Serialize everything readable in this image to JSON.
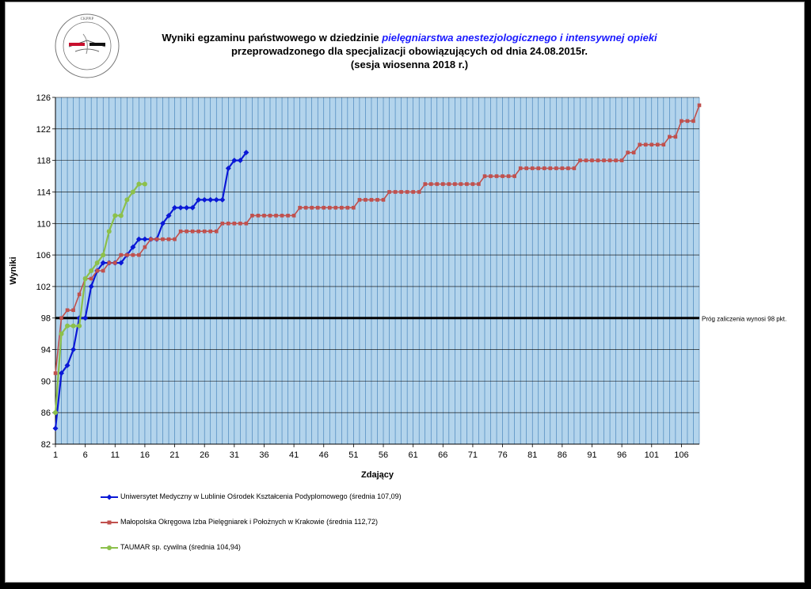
{
  "logo": {
    "text": "Centrum Kształcenia Podyplomowego Pielęgniarek i Położnych",
    "letters": "CKPPiP"
  },
  "title": {
    "line1_prefix": "Wyniki egzaminu państwowego w dziedzinie ",
    "line1_highlight": "pielęgniarstwa anestezjologicznego i intensywnej opieki",
    "line2": "przeprowadzonego dla specjalizacji obowiązujących od dnia 24.08.2015r.",
    "line3": "(sesja wiosenna 2018 r.)"
  },
  "colors": {
    "plot_bg": "#b3d4ec",
    "vgrid": "#3a7ab5",
    "hgrid": "#000000",
    "threshold": "#000000",
    "series": [
      "#0a18d6",
      "#c0504d",
      "#8cc04b"
    ]
  },
  "chart_data": {
    "type": "line",
    "xlabel": "Zdający",
    "ylabel": "Wyniki",
    "xlim": [
      1,
      109
    ],
    "ylim": [
      82,
      126
    ],
    "yticks": [
      82,
      86,
      90,
      94,
      98,
      102,
      106,
      110,
      114,
      118,
      122,
      126
    ],
    "xticks": [
      1,
      6,
      11,
      16,
      21,
      26,
      31,
      36,
      41,
      46,
      51,
      56,
      61,
      66,
      71,
      76,
      81,
      86,
      91,
      96,
      101,
      106
    ],
    "grid": true,
    "legend_position": "bottom-left",
    "threshold": {
      "value": 98,
      "label": "Próg zaliczenia wynosi 98 pkt."
    },
    "series": [
      {
        "name": "Uniwersytet Medyczny w Lublinie Ośrodek Kształcenia Podyplomowego (średnia 107,09)",
        "marker": "diamond",
        "values": [
          84,
          91,
          92,
          94,
          98,
          98,
          102,
          104,
          105,
          105,
          105,
          105,
          106,
          107,
          108,
          108,
          108,
          108,
          110,
          111,
          112,
          112,
          112,
          112,
          113,
          113,
          113,
          113,
          113,
          117,
          118,
          118,
          119
        ]
      },
      {
        "name": "Małopolska Okręgowa Izba Pielęgniarek i Położnych w Krakowie (średnia 112,72)",
        "marker": "square",
        "values": [
          91,
          98,
          99,
          99,
          101,
          103,
          103,
          104,
          104,
          105,
          105,
          106,
          106,
          106,
          106,
          107,
          108,
          108,
          108,
          108,
          108,
          109,
          109,
          109,
          109,
          109,
          109,
          109,
          110,
          110,
          110,
          110,
          110,
          111,
          111,
          111,
          111,
          111,
          111,
          111,
          111,
          112,
          112,
          112,
          112,
          112,
          112,
          112,
          112,
          112,
          112,
          113,
          113,
          113,
          113,
          113,
          114,
          114,
          114,
          114,
          114,
          114,
          115,
          115,
          115,
          115,
          115,
          115,
          115,
          115,
          115,
          115,
          116,
          116,
          116,
          116,
          116,
          116,
          117,
          117,
          117,
          117,
          117,
          117,
          117,
          117,
          117,
          117,
          118,
          118,
          118,
          118,
          118,
          118,
          118,
          118,
          119,
          119,
          120,
          120,
          120,
          120,
          120,
          121,
          121,
          123,
          123,
          123,
          125
        ]
      },
      {
        "name": "TAUMAR sp. cywilna (średnia 104,94)",
        "marker": "circle",
        "values": [
          86,
          96,
          97,
          97,
          97,
          103,
          104,
          105,
          106,
          109,
          111,
          111,
          113,
          114,
          115,
          115
        ]
      }
    ]
  }
}
